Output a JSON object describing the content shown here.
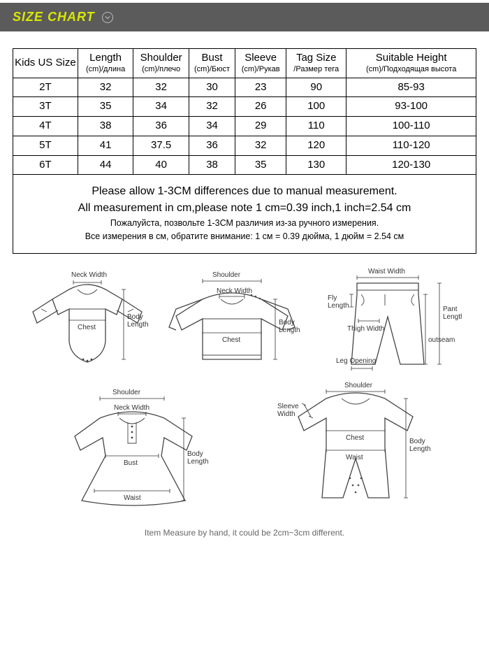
{
  "header": {
    "title": "SIZE CHART",
    "bg_color": "#5b5b5b",
    "title_color": "#d9e800"
  },
  "table": {
    "border_color": "#000000",
    "columns": [
      {
        "main": "Kids US Size",
        "sub": ""
      },
      {
        "main": "Length",
        "sub": "(cm)/длина"
      },
      {
        "main": "Shoulder",
        "sub": "(cm)/плечо"
      },
      {
        "main": "Bust",
        "sub": "(cm)/Бюст"
      },
      {
        "main": "Sleeve",
        "sub": "(cm)/Рукав"
      },
      {
        "main": "Tag Size",
        "sub": "/Размер тега"
      },
      {
        "main": "Suitable Height",
        "sub": "(cm)/Подходящая высота"
      }
    ],
    "col_widths": [
      "14%",
      "12%",
      "12%",
      "10%",
      "11%",
      "13%",
      "28%"
    ],
    "rows": [
      [
        "2T",
        "32",
        "32",
        "30",
        "23",
        "90",
        "85-93"
      ],
      [
        "3T",
        "35",
        "34",
        "32",
        "26",
        "100",
        "93-100"
      ],
      [
        "4T",
        "38",
        "36",
        "34",
        "29",
        "110",
        "100-110"
      ],
      [
        "5T",
        "41",
        "37.5",
        "36",
        "32",
        "120",
        "110-120"
      ],
      [
        "6T",
        "44",
        "40",
        "38",
        "35",
        "130",
        "120-130"
      ]
    ],
    "notes_en": [
      "Please allow 1-3CM differences due to manual measurement.",
      "All measurement in cm,please note 1 cm=0.39 inch,1 inch=2.54 cm"
    ],
    "notes_ru": [
      "Пожалуйста, позвольте 1-3СМ различия из-за ручного измерения.",
      "Все измерения в см, обратите внимание: 1 см = 0.39 дюйма, 1 дюйм = 2.54 см"
    ]
  },
  "diagrams": {
    "labels": {
      "neck_width": "Neck Width",
      "chest": "Chest",
      "body_length": "Body\nLength",
      "shoulder": "Shoulder",
      "waist_width": "Waist Width",
      "fly_length": "Fly\nLength",
      "thigh_width": "Thigh Width",
      "leg_opening": "Leg Opening",
      "outseam": "outseam",
      "pant_length": "Pant\nLength",
      "bust": "Bust",
      "waist": "Waist",
      "sleeve_width": "Sleeve\nWidth"
    },
    "footer": "Item Measure by hand, it could be 2cm~3cm different.",
    "stroke_color": "#444444",
    "label_color": "#333333",
    "label_fontsize": 10
  }
}
